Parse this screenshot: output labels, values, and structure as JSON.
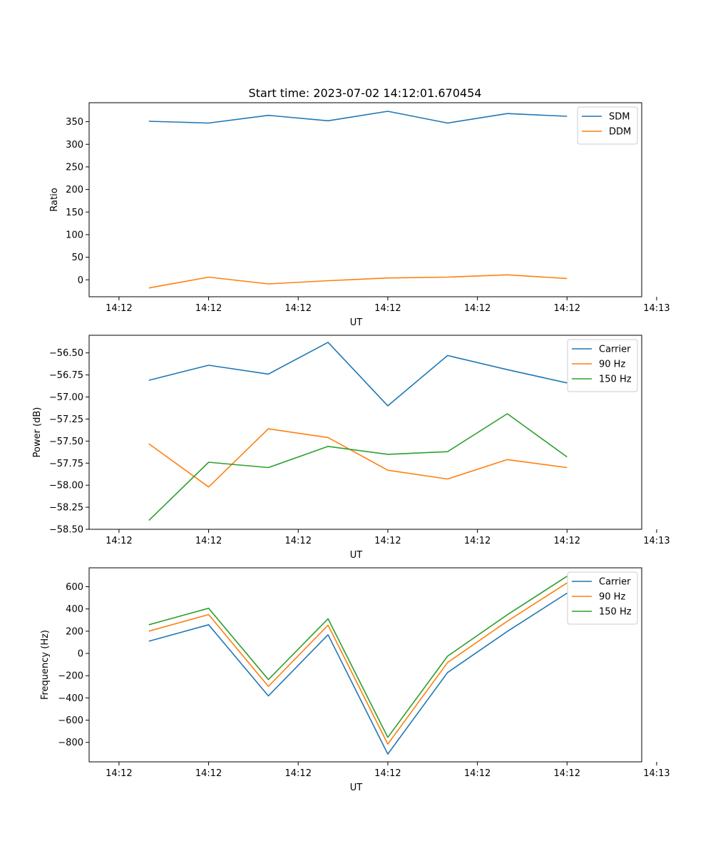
{
  "figure": {
    "title": "Start time: 2023-07-02 14:12:01.670454"
  },
  "colors": {
    "blue": "#1f77b4",
    "orange": "#ff7f0e",
    "green": "#2ca02c"
  },
  "chart_data": [
    {
      "type": "line",
      "title": "Start time: 2023-07-02 14:12:01.670454",
      "xlabel": "UT",
      "ylabel": "Ratio",
      "x": [
        1,
        2,
        3,
        4,
        5,
        6,
        7,
        8
      ],
      "xlim": [
        0,
        9.25
      ],
      "xticks": [
        0.5,
        2,
        3.5,
        5,
        6.5,
        8,
        9.5
      ],
      "xtick_labels": [
        "14:12",
        "14:12",
        "14:12",
        "14:12",
        "14:12",
        "14:12",
        "14:13"
      ],
      "ylim": [
        -37.5,
        392
      ],
      "yticks": [
        0,
        50,
        100,
        150,
        200,
        250,
        300,
        350
      ],
      "ytick_labels": [
        "0",
        "50",
        "100",
        "150",
        "200",
        "250",
        "300",
        "350"
      ],
      "legend": "top-right",
      "series": [
        {
          "name": "SDM",
          "color": "#1f77b4",
          "values": [
            351,
            347,
            364,
            352,
            373,
            347,
            368,
            362
          ]
        },
        {
          "name": "DDM",
          "color": "#ff7f0e",
          "values": [
            -18,
            6,
            -9,
            -2,
            4,
            6,
            11,
            3
          ]
        }
      ]
    },
    {
      "type": "line",
      "xlabel": "UT",
      "ylabel": "Power (dB)",
      "x": [
        1,
        2,
        3,
        4,
        5,
        6,
        7,
        8
      ],
      "xlim": [
        0,
        9.25
      ],
      "xticks": [
        0.5,
        2,
        3.5,
        5,
        6.5,
        8,
        9.5
      ],
      "xtick_labels": [
        "14:12",
        "14:12",
        "14:12",
        "14:12",
        "14:12",
        "14:12",
        "14:13"
      ],
      "ylim": [
        -58.5,
        -56.3
      ],
      "yticks": [
        -58.5,
        -58.25,
        -58.0,
        -57.75,
        -57.5,
        -57.25,
        -57.0,
        -56.75,
        -56.5
      ],
      "ytick_labels": [
        "−58.50",
        "−58.25",
        "−58.00",
        "−57.75",
        "−57.50",
        "−57.25",
        "−57.00",
        "−56.75",
        "−56.50"
      ],
      "legend": "top-right",
      "series": [
        {
          "name": "Carrier",
          "color": "#1f77b4",
          "values": [
            -56.81,
            -56.64,
            -56.74,
            -56.38,
            -57.1,
            -56.53,
            -56.69,
            -56.84
          ]
        },
        {
          "name": "90 Hz",
          "color": "#ff7f0e",
          "values": [
            -57.53,
            -58.02,
            -57.36,
            -57.46,
            -57.83,
            -57.93,
            -57.71,
            -57.8
          ]
        },
        {
          "name": "150 Hz",
          "color": "#2ca02c",
          "values": [
            -58.4,
            -57.74,
            -57.8,
            -57.56,
            -57.65,
            -57.62,
            -57.19,
            -57.68
          ]
        }
      ]
    },
    {
      "type": "line",
      "xlabel": "UT",
      "ylabel": "Frequency (Hz)",
      "x": [
        1,
        2,
        3,
        4,
        5,
        6,
        7,
        8
      ],
      "xlim": [
        0,
        9.25
      ],
      "xticks": [
        0.5,
        2,
        3.5,
        5,
        6.5,
        8,
        9.5
      ],
      "xtick_labels": [
        "14:12",
        "14:12",
        "14:12",
        "14:12",
        "14:12",
        "14:12",
        "14:13"
      ],
      "ylim": [
        -975,
        770
      ],
      "yticks": [
        -800,
        -600,
        -400,
        -200,
        0,
        200,
        400,
        600
      ],
      "ytick_labels": [
        "−800",
        "−600",
        "−400",
        "−200",
        "0",
        "200",
        "400",
        "600"
      ],
      "legend": "top-right",
      "series": [
        {
          "name": "Carrier",
          "color": "#1f77b4",
          "values": [
            110,
            258,
            -382,
            168,
            -905,
            -172,
            198,
            542
          ]
        },
        {
          "name": "90 Hz",
          "color": "#ff7f0e",
          "values": [
            200,
            350,
            -296,
            254,
            -815,
            -82,
            290,
            634
          ]
        },
        {
          "name": "150 Hz",
          "color": "#2ca02c",
          "values": [
            258,
            406,
            -235,
            312,
            -755,
            -25,
            348,
            694
          ]
        }
      ]
    }
  ]
}
